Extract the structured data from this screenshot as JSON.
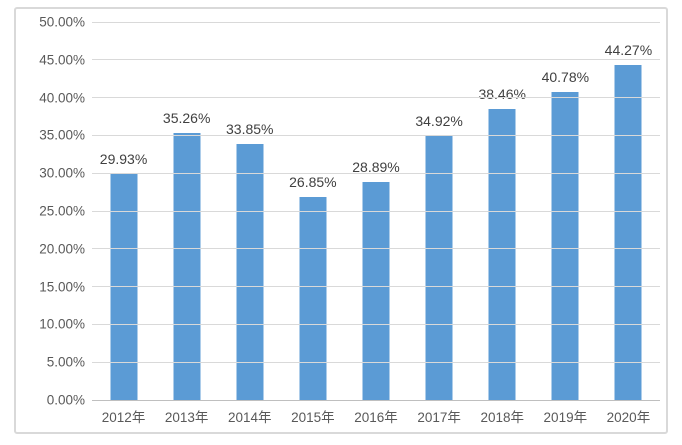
{
  "chart_data": {
    "type": "bar",
    "title": "",
    "xlabel": "",
    "ylabel": "",
    "categories": [
      "2012年",
      "2013年",
      "2014年",
      "2015年",
      "2016年",
      "2017年",
      "2018年",
      "2019年",
      "2020年"
    ],
    "values": [
      29.93,
      35.26,
      33.85,
      26.85,
      28.89,
      34.92,
      38.46,
      40.78,
      44.27
    ],
    "value_labels": [
      "29.93%",
      "35.26%",
      "33.85%",
      "26.85%",
      "28.89%",
      "34.92%",
      "38.46%",
      "40.78%",
      "44.27%"
    ],
    "yticks": [
      "50.00%",
      "45.00%",
      "40.00%",
      "35.00%",
      "30.00%",
      "25.00%",
      "20.00%",
      "15.00%",
      "10.00%",
      "5.00%",
      "0.00%"
    ],
    "ylim": [
      0,
      50
    ],
    "grid": true,
    "legend": false,
    "colors": {
      "bar": "#5b9bd5",
      "gridline": "#d9d9d9",
      "axis_line": "#bfbfbf",
      "tick_text": "#595959",
      "value_label_text": "#404040",
      "frame_border": "#d9d9d9",
      "background": "#ffffff"
    }
  }
}
